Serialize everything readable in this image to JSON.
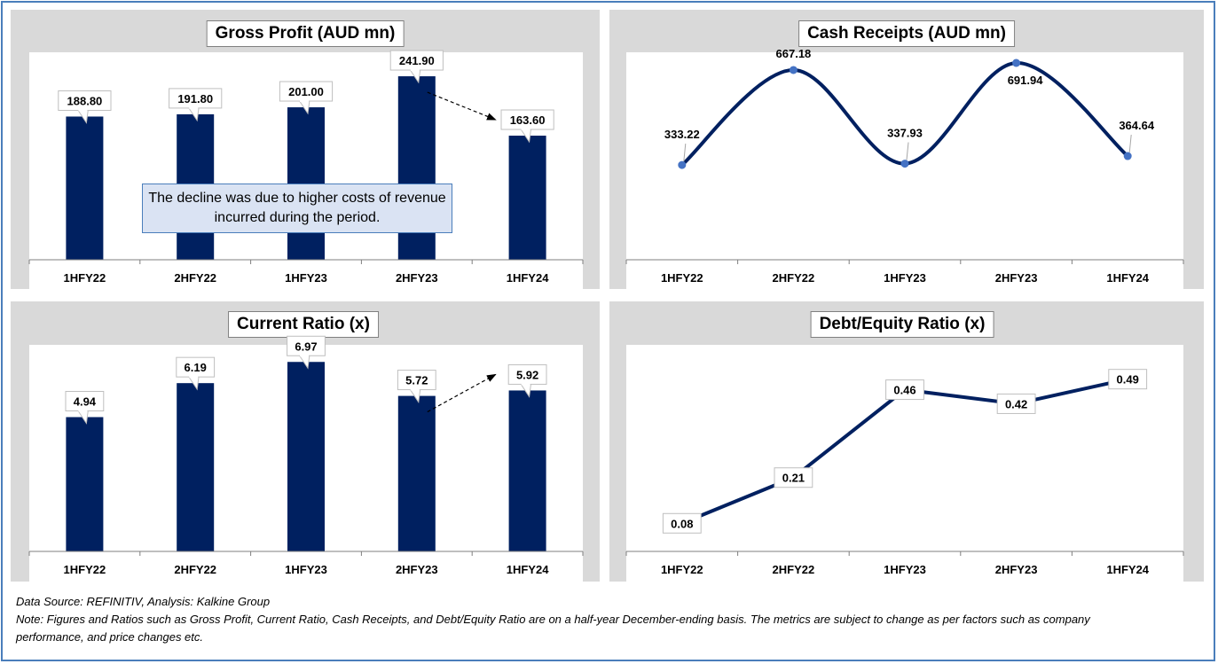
{
  "chart_data": [
    {
      "type": "bar",
      "title": "Gross Profit (AUD mn)",
      "categories": [
        "1HFY22",
        "2HFY22",
        "1HFY23",
        "2HFY23",
        "1HFY24"
      ],
      "values": [
        188.8,
        191.8,
        201.0,
        241.9,
        163.6
      ],
      "labels": [
        "188.80",
        "191.80",
        "201.00",
        "241.90",
        "163.60"
      ],
      "ylim": [
        0,
        270
      ],
      "grid": false,
      "bar_color": "#002060",
      "annotation": "The decline was due to higher costs of revenue incurred during the period."
    },
    {
      "type": "line",
      "title": "Cash Receipts (AUD mn)",
      "categories": [
        "1HFY22",
        "2HFY22",
        "1HFY23",
        "2HFY23",
        "1HFY24"
      ],
      "values": [
        333.22,
        667.18,
        337.93,
        691.94,
        364.64
      ],
      "labels": [
        "333.22",
        "667.18",
        "337.93",
        "691.94",
        "364.64"
      ],
      "ylim": [
        0,
        720
      ],
      "smooth": true,
      "grid": false,
      "line_color": "#002060",
      "marker_color": "#4472c4"
    },
    {
      "type": "bar",
      "title": "Current Ratio (x)",
      "categories": [
        "1HFY22",
        "2HFY22",
        "1HFY23",
        "2HFY23",
        "1HFY24"
      ],
      "values": [
        4.94,
        6.19,
        6.97,
        5.72,
        5.92
      ],
      "labels": [
        "4.94",
        "6.19",
        "6.97",
        "5.72",
        "5.92"
      ],
      "ylim": [
        0,
        7.5
      ],
      "grid": false,
      "bar_color": "#002060"
    },
    {
      "type": "line",
      "title": "Debt/Equity Ratio (x)",
      "categories": [
        "1HFY22",
        "2HFY22",
        "1HFY23",
        "2HFY23",
        "1HFY24"
      ],
      "values": [
        0.08,
        0.21,
        0.46,
        0.42,
        0.49
      ],
      "labels": [
        "0.08",
        "0.21",
        "0.46",
        "0.42",
        "0.49"
      ],
      "ylim": [
        0,
        0.58
      ],
      "grid": false,
      "line_color": "#002060"
    }
  ],
  "footer": {
    "source": "Data Source: REFINITIV, Analysis: Kalkine Group",
    "note_line1": "Note: Figures and Ratios such as Gross Profit, Current Ratio, Cash Receipts, and Debt/Equity Ratio are on a half-year December-ending basis. The metrics are subject to change as per factors such as company",
    "note_line2": "performance, and price changes etc."
  }
}
